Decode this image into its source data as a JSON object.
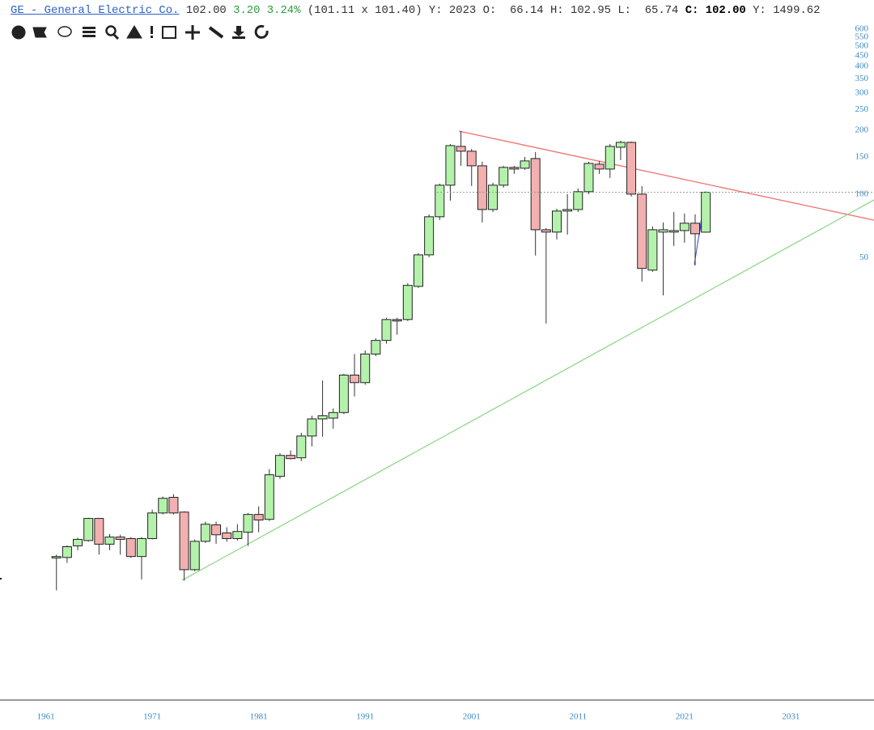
{
  "header": {
    "symbol": "GE - General Electric Co.",
    "last": "102.00",
    "change": "3.20",
    "change_pct": "3.24%",
    "bid_ask": "(101.11 x 101.40)",
    "period": "Y: 2023",
    "open": {
      "label": "O:",
      "value": "66.14"
    },
    "high": {
      "label": "H:",
      "value": "102.95"
    },
    "low": {
      "label": "L:",
      "value": "65.74"
    },
    "close": {
      "label": "C:",
      "value": "102.00"
    },
    "volume": "Y: 1499.62"
  },
  "chart_data": {
    "type": "candlestick",
    "log_scale": true,
    "up_color": "#b4f2ac",
    "down_color": "#f2b0b0",
    "x": [
      1962,
      1963,
      1964,
      1965,
      1966,
      1967,
      1968,
      1969,
      1970,
      1971,
      1972,
      1973,
      1974,
      1975,
      1976,
      1977,
      1978,
      1979,
      1980,
      1981,
      1982,
      1983,
      1984,
      1985,
      1986,
      1987,
      1988,
      1989,
      1990,
      1991,
      1992,
      1993,
      1994,
      1995,
      1996,
      1997,
      1998,
      1999,
      2000,
      2001,
      2002,
      2003,
      2004,
      2005,
      2006,
      2007,
      2008,
      2009,
      2010,
      2011,
      2012,
      2013,
      2014,
      2015,
      2016,
      2017,
      2018,
      2019,
      2020,
      2021,
      2022,
      2023
    ],
    "open": [
      1.92,
      1.93,
      2.19,
      2.32,
      2.95,
      2.23,
      2.41,
      2.37,
      1.95,
      2.37,
      3.13,
      3.71,
      3.16,
      1.69,
      2.3,
      2.75,
      2.52,
      2.37,
      2.54,
      3.08,
      2.92,
      4.66,
      5.85,
      5.7,
      7.22,
      8.69,
      8.77,
      9.32,
      14.0,
      12.9,
      17.6,
      20.4,
      25.6,
      25.6,
      36.7,
      51.7,
      78.2,
      110.2,
      168,
      159.4,
      136,
      84.6,
      110.2,
      133.7,
      132.5,
      147.2,
      67.9,
      66.2,
      83.2,
      84.6,
      102.7,
      138.4,
      131.3,
      166.4,
      175.5,
      100,
      43.8,
      66.2,
      66.2,
      67.3,
      72.9,
      66.14
    ],
    "high": [
      1.99,
      2.2,
      2.39,
      2.97,
      2.97,
      2.49,
      2.47,
      2.41,
      2.41,
      3.25,
      3.74,
      3.84,
      3.19,
      2.35,
      2.85,
      2.85,
      2.68,
      2.77,
      3.13,
      3.36,
      5.04,
      6.0,
      6.17,
      7.48,
      9.0,
      13.2,
      9.74,
      14.2,
      17.6,
      18.3,
      20.9,
      26.1,
      26.1,
      38.0,
      52.7,
      80.3,
      112.1,
      172.4,
      198.5,
      163.6,
      142.1,
      113.1,
      136,
      136,
      149.8,
      157.9,
      69.1,
      85.4,
      100,
      106.3,
      142.1,
      143.4,
      172.4,
      178.6,
      177,
      109.2,
      70.4,
      73.5,
      82.4,
      81,
      80.3,
      102.95
    ],
    "low": [
      1.35,
      1.82,
      2.09,
      2.29,
      1.99,
      2.09,
      1.99,
      1.92,
      1.52,
      2.35,
      3.08,
      3.08,
      1.5,
      1.66,
      2.26,
      2.24,
      2.29,
      2.32,
      2.19,
      2.54,
      2.87,
      4.53,
      5.6,
      5.5,
      6.45,
      7.16,
      7.82,
      9.16,
      11.1,
      12.6,
      17.2,
      19.7,
      21.7,
      25.2,
      36.1,
      50.4,
      75.5,
      93.2,
      136,
      109.2,
      73.5,
      82.4,
      107.3,
      124.6,
      130.2,
      51.3,
      24.5,
      61.1,
      64.4,
      82.4,
      100,
      124.6,
      119.2,
      144.7,
      97.4,
      38.7,
      43,
      33.3,
      57,
      59.0,
      46.1,
      65.74
    ],
    "close": [
      1.95,
      2.17,
      2.35,
      2.95,
      2.23,
      2.41,
      2.35,
      1.95,
      2.37,
      3.13,
      3.67,
      3.13,
      1.69,
      2.3,
      2.77,
      2.47,
      2.37,
      2.56,
      3.08,
      2.9,
      4.74,
      5.85,
      5.65,
      7.22,
      8.69,
      9.0,
      9.32,
      14.0,
      12.9,
      17.6,
      20.4,
      25.6,
      25.2,
      37.1,
      51.7,
      78.2,
      110.2,
      169.4,
      159.4,
      136,
      84.6,
      110.2,
      133.7,
      131.3,
      143.4,
      67.9,
      66.2,
      83.2,
      84.6,
      102.7,
      139.6,
      131.3,
      168,
      175.5,
      100,
      44.6,
      67.9,
      67.9,
      67.3,
      72.9,
      65,
      102.0
    ],
    "xlim": [
      1956.7,
      2038.8
    ],
    "xticks": [
      1961,
      1971,
      1981,
      1991,
      2001,
      2011,
      2021,
      2031
    ],
    "ylim": [
      0.41,
      633
    ],
    "yticks": [
      50,
      100,
      150,
      200,
      250,
      300,
      350,
      400,
      450,
      500,
      550,
      600
    ]
  }
}
